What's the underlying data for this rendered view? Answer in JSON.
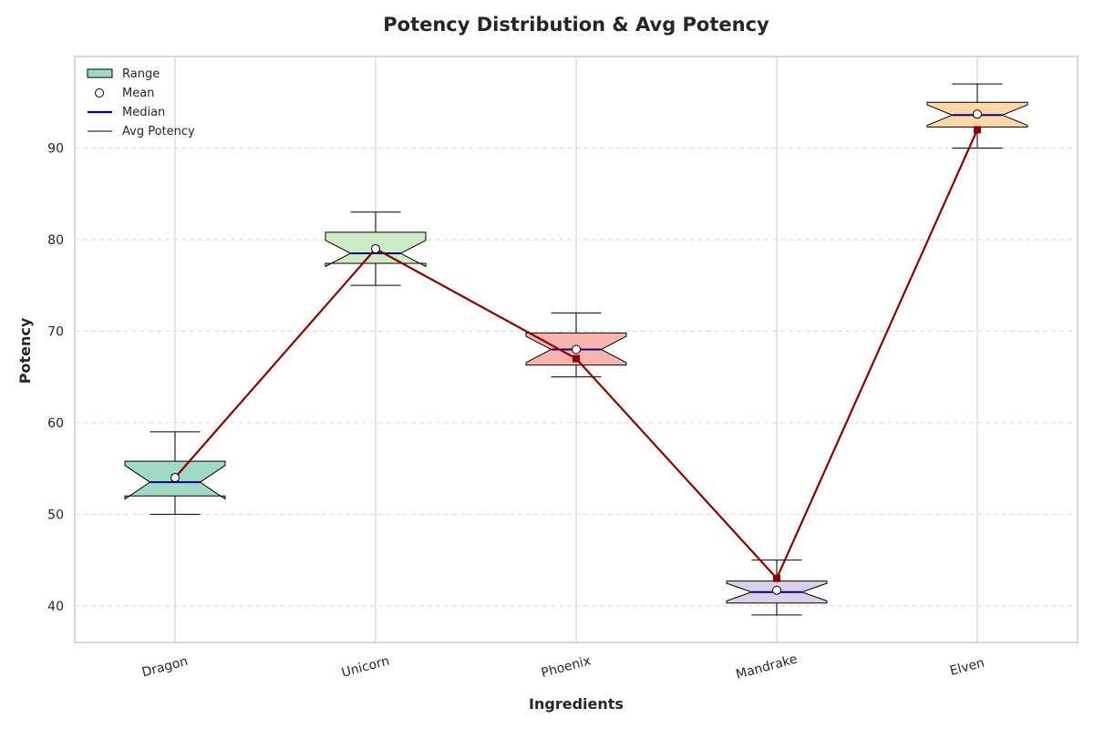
{
  "chart_data": {
    "type": "box",
    "title": "Potency Distribution & Avg Potency",
    "xlabel": "Ingredients",
    "ylabel": "Potency",
    "categories": [
      "Dragon",
      "Unicorn",
      "Phoenix",
      "Mandrake",
      "Elven"
    ],
    "boxes": [
      {
        "name": "Dragon",
        "min": 50,
        "q1": 52.0,
        "median": 53.5,
        "q3": 55.8,
        "max": 59,
        "mean": 54.0,
        "color": "#a1d9c8"
      },
      {
        "name": "Unicorn",
        "min": 75,
        "q1": 77.4,
        "median": 78.5,
        "q3": 80.8,
        "max": 83,
        "mean": 79.0,
        "color": "#cdebc5"
      },
      {
        "name": "Phoenix",
        "min": 65,
        "q1": 66.3,
        "median": 68.0,
        "q3": 69.8,
        "max": 72,
        "mean": 68.0,
        "color": "#f9b4b0"
      },
      {
        "name": "Mandrake",
        "min": 39,
        "q1": 40.3,
        "median": 41.5,
        "q3": 42.7,
        "max": 45,
        "mean": 41.7,
        "color": "#dccfe8"
      },
      {
        "name": "Elven",
        "min": 90,
        "q1": 92.3,
        "median": 93.6,
        "q3": 95.0,
        "max": 97,
        "mean": 93.7,
        "color": "#fdd9a8"
      }
    ],
    "avg_potency": [
      54,
      79,
      67,
      43,
      92
    ],
    "avg_color": "#8b0000",
    "median_color": "#00008b",
    "yticks": [
      40,
      50,
      60,
      70,
      80,
      90
    ],
    "ylim": [
      36,
      100
    ],
    "grid": true,
    "legend_position": "top-left",
    "legend": [
      "Range",
      "Mean",
      "Median",
      "Avg Potency"
    ]
  }
}
